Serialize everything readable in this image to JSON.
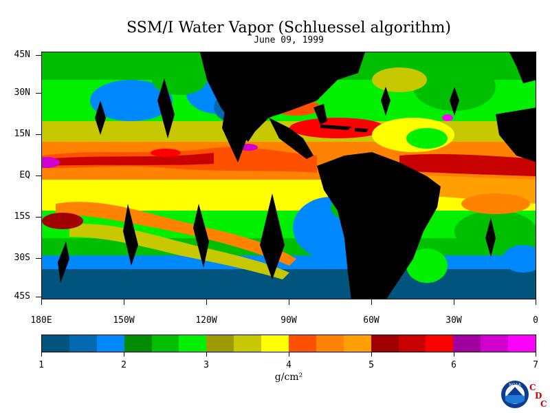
{
  "title": "SSM/I Water Vapor (Schluessel algorithm)",
  "subtitle": "June 09, 1999",
  "lat_labels": [
    "45N",
    "30N",
    "15N",
    "EQ",
    "15S",
    "30S",
    "45S"
  ],
  "lon_labels": [
    "180E",
    "150W",
    "120W",
    "90W",
    "60W",
    "30W",
    "0"
  ],
  "colorbar": {
    "colors": [
      "#00547d",
      "#0069b0",
      "#0089ff",
      "#008c00",
      "#00bf00",
      "#00f000",
      "#9c9c00",
      "#c8c800",
      "#ffff00",
      "#ff5000",
      "#ff8200",
      "#ffa000",
      "#a00000",
      "#c80000",
      "#ff0000",
      "#a000a0",
      "#d000d0",
      "#ff00ff"
    ],
    "tick_labels": [
      "1",
      "2",
      "3",
      "4",
      "5",
      "6",
      "7"
    ],
    "unit": "g/cm²"
  },
  "logo": {
    "text": "NOAA",
    "cdc": [
      "C",
      "D",
      "C"
    ]
  },
  "palette": {
    "ocean_deep": "#00547d",
    "ocean_mid": "#0069b0",
    "ocean_light": "#0089ff",
    "green_dark": "#008c00",
    "green": "#00bf00",
    "green_light": "#00f000",
    "olive": "#9c9c00",
    "yellow_olive": "#c8c800",
    "yellow": "#ffff00",
    "orange_red": "#ff5000",
    "orange": "#ff8200",
    "amber": "#ffa000",
    "dark_red": "#a00000",
    "red": "#c80000",
    "bright_red": "#ff0000",
    "purple": "#a000a0",
    "magenta": "#d000d0",
    "pink": "#ff00ff",
    "land": "#000000"
  }
}
